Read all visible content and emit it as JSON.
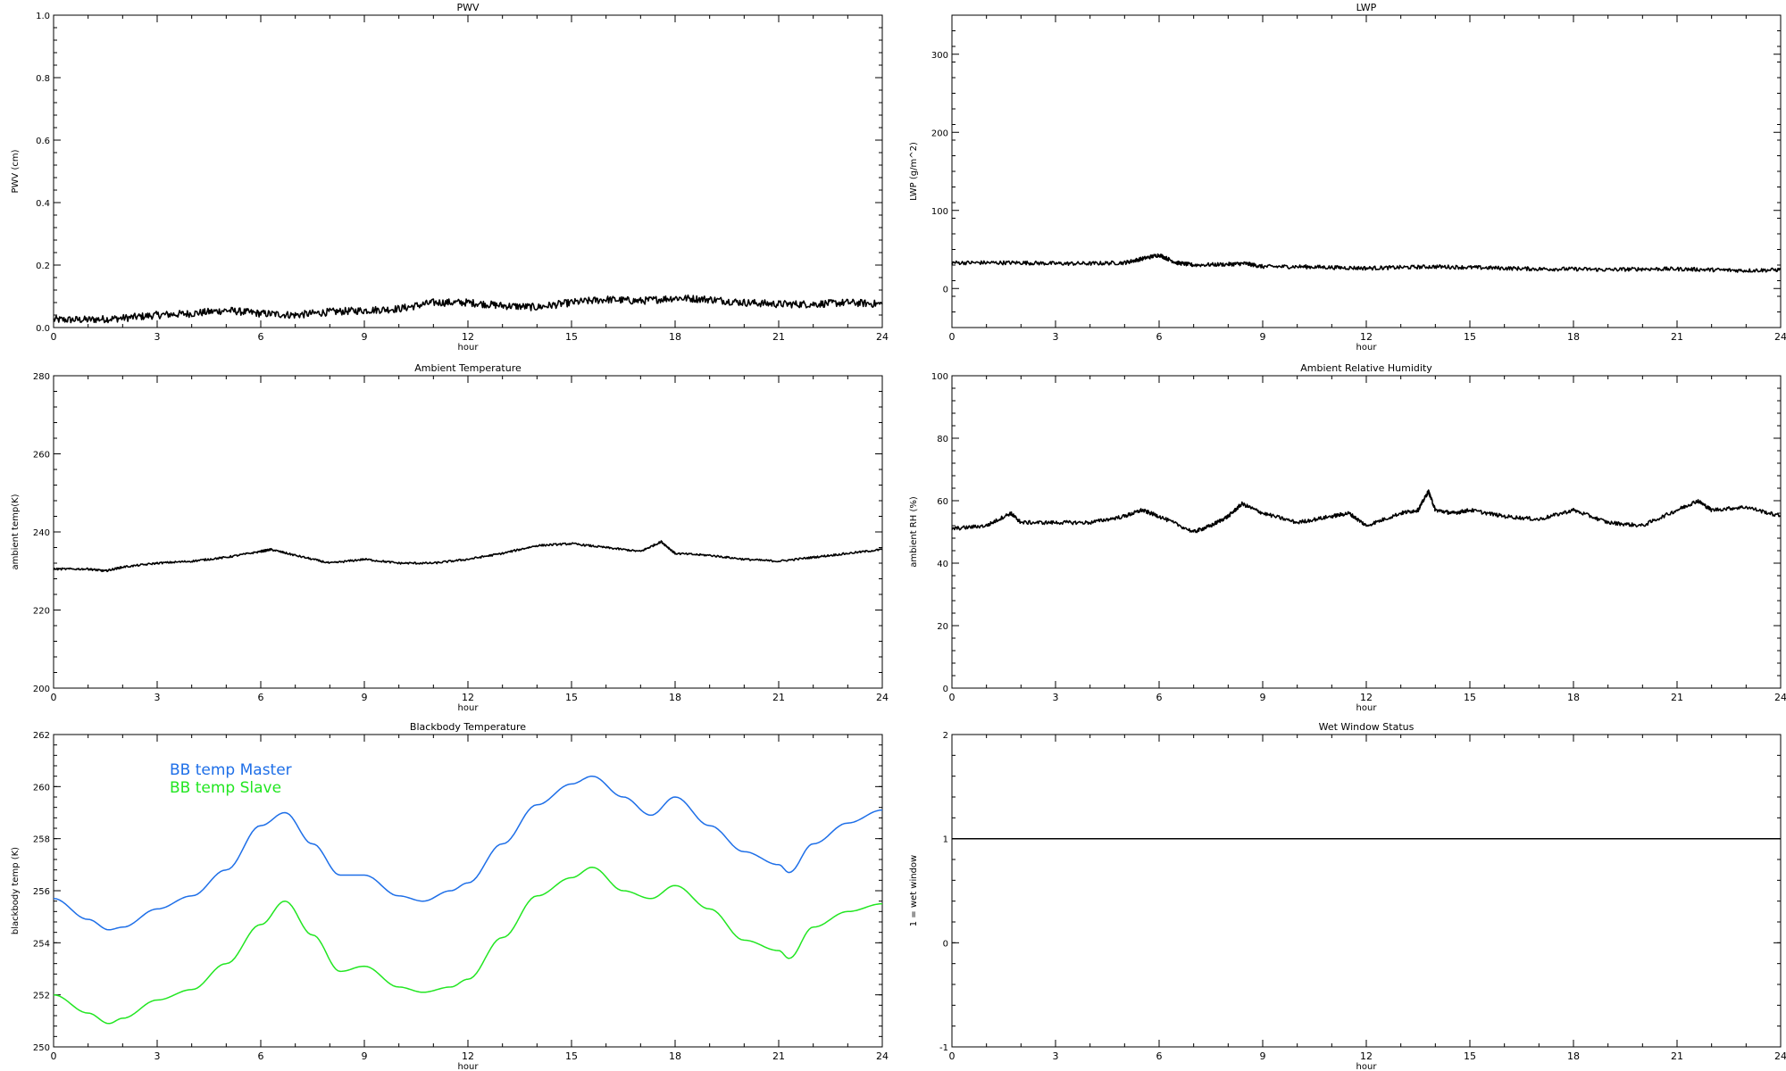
{
  "chart_data": [
    {
      "type": "line",
      "title": "PWV",
      "xlabel": "hour",
      "ylabel": "PWV (cm)",
      "xlim": [
        0,
        24
      ],
      "ylim": [
        0.0,
        1.0
      ],
      "xticks": [
        "0",
        "3",
        "6",
        "9",
        "12",
        "15",
        "18",
        "21",
        "24"
      ],
      "yticks": [
        "0.0",
        "0.2",
        "0.4",
        "0.6",
        "0.8",
        "1.0"
      ],
      "series": [
        {
          "color": "#000000",
          "noise": 0.012,
          "x": [
            0,
            1,
            2,
            3,
            4,
            5,
            6,
            7,
            8,
            9,
            10,
            11,
            12,
            13,
            14,
            15,
            16,
            17,
            18,
            19,
            20,
            21,
            22,
            23,
            24
          ],
          "y": [
            0.025,
            0.025,
            0.03,
            0.04,
            0.045,
            0.055,
            0.045,
            0.04,
            0.05,
            0.055,
            0.06,
            0.08,
            0.08,
            0.07,
            0.065,
            0.08,
            0.09,
            0.085,
            0.095,
            0.09,
            0.08,
            0.075,
            0.075,
            0.08,
            0.075
          ]
        }
      ]
    },
    {
      "type": "line",
      "title": "LWP",
      "xlabel": "hour",
      "ylabel": "LWP (g/m^2)",
      "xlim": [
        0,
        24
      ],
      "ylim": [
        -50,
        350
      ],
      "xticks": [
        "0",
        "3",
        "6",
        "9",
        "12",
        "15",
        "18",
        "21",
        "24"
      ],
      "yticks": [
        "0",
        "100",
        "200",
        "300"
      ],
      "series": [
        {
          "color": "#000000",
          "noise": 2.5,
          "x": [
            0,
            1,
            2,
            3,
            4,
            5,
            5.5,
            6,
            6.5,
            7,
            8,
            8.5,
            9,
            10,
            11,
            12,
            13,
            14,
            15,
            16,
            17,
            18,
            19,
            20,
            21,
            22,
            23,
            24
          ],
          "y": [
            33,
            33,
            33,
            32,
            32,
            33,
            38,
            43,
            33,
            30,
            31,
            32,
            28,
            28,
            27,
            26,
            27,
            28,
            27,
            26,
            25,
            25,
            24,
            25,
            25,
            24,
            23,
            24
          ]
        }
      ]
    },
    {
      "type": "line",
      "title": "Ambient Temperature",
      "xlabel": "hour",
      "ylabel": "ambient temp(K)",
      "xlim": [
        0,
        24
      ],
      "ylim": [
        200,
        280
      ],
      "xticks": [
        "0",
        "3",
        "6",
        "9",
        "12",
        "15",
        "18",
        "21",
        "24"
      ],
      "yticks": [
        "200",
        "220",
        "240",
        "260",
        "280"
      ],
      "series": [
        {
          "color": "#000000",
          "noise": 0.25,
          "x": [
            0,
            1,
            1.5,
            2,
            3,
            4,
            5,
            6,
            6.3,
            7,
            8,
            9,
            10,
            11,
            12,
            13,
            14,
            15,
            16,
            17,
            17.6,
            18,
            19,
            20,
            21,
            22,
            23,
            24
          ],
          "y": [
            230.5,
            230.5,
            230,
            231,
            232,
            232.5,
            233.5,
            235,
            235.5,
            234,
            232,
            233,
            232,
            232,
            233,
            234.5,
            236.5,
            237,
            236,
            235,
            237.5,
            234.5,
            234,
            233,
            232.5,
            233.5,
            234.5,
            235.5
          ]
        }
      ]
    },
    {
      "type": "line",
      "title": "Ambient Relative Humidity",
      "xlabel": "hour",
      "ylabel": "ambient RH (%)",
      "xlim": [
        0,
        24
      ],
      "ylim": [
        0,
        100
      ],
      "xticks": [
        "0",
        "3",
        "6",
        "9",
        "12",
        "15",
        "18",
        "21",
        "24"
      ],
      "yticks": [
        "0",
        "20",
        "40",
        "60",
        "80",
        "100"
      ],
      "series": [
        {
          "color": "#000000",
          "noise": 0.6,
          "x": [
            0,
            1,
            1.7,
            2,
            3,
            4,
            5,
            5.5,
            6,
            7,
            7.5,
            8,
            8.4,
            9,
            10,
            11,
            11.5,
            12,
            13,
            13.5,
            13.8,
            14,
            14.5,
            15,
            16,
            17,
            18,
            19,
            20,
            21,
            21.6,
            22,
            23,
            24
          ],
          "y": [
            51,
            52,
            56,
            53,
            53,
            53,
            55,
            57,
            55,
            50,
            52,
            55,
            59,
            56,
            53,
            55,
            56,
            52,
            56,
            57,
            63,
            57,
            56,
            57,
            55,
            54,
            57,
            53,
            52,
            57,
            60,
            57,
            58,
            55
          ]
        }
      ]
    },
    {
      "type": "line",
      "title": "Blackbody Temperature",
      "xlabel": "hour",
      "ylabel": "blackbody temp (K)",
      "xlim": [
        0,
        24
      ],
      "ylim": [
        250,
        262
      ],
      "xticks": [
        "0",
        "3",
        "6",
        "9",
        "12",
        "15",
        "18",
        "21",
        "24"
      ],
      "yticks": [
        "250",
        "252",
        "254",
        "256",
        "258",
        "260",
        "262"
      ],
      "legend": [
        "BB temp Master",
        "BB temp Slave"
      ],
      "series": [
        {
          "name": "BB temp Master",
          "color": "#1e6fe8",
          "noise": 0,
          "x": [
            0,
            1,
            1.6,
            2,
            3,
            4,
            5,
            6,
            6.7,
            7.5,
            8.3,
            9,
            10,
            10.7,
            11.5,
            12,
            13,
            14,
            15,
            15.6,
            16.5,
            17.3,
            18,
            19,
            20,
            21,
            21.3,
            22,
            23,
            24
          ],
          "y": [
            255.7,
            254.9,
            254.5,
            254.6,
            255.3,
            255.8,
            256.8,
            258.5,
            259.0,
            257.8,
            256.6,
            256.6,
            255.8,
            255.6,
            256.0,
            256.3,
            257.8,
            259.3,
            260.1,
            260.4,
            259.6,
            258.9,
            259.6,
            258.5,
            257.5,
            257.0,
            256.7,
            257.8,
            258.6,
            259.1
          ]
        },
        {
          "name": "BB temp Slave",
          "color": "#22e622",
          "noise": 0,
          "x": [
            0,
            1,
            1.6,
            2,
            3,
            4,
            5,
            6,
            6.7,
            7.5,
            8.3,
            9,
            10,
            10.7,
            11.5,
            12,
            13,
            14,
            15,
            15.6,
            16.5,
            17.3,
            18,
            19,
            20,
            21,
            21.3,
            22,
            23,
            24
          ],
          "y": [
            252.0,
            251.3,
            250.9,
            251.1,
            251.8,
            252.2,
            253.2,
            254.7,
            255.6,
            254.3,
            252.9,
            253.1,
            252.3,
            252.1,
            252.3,
            252.6,
            254.2,
            255.8,
            256.5,
            256.9,
            256.0,
            255.7,
            256.2,
            255.3,
            254.1,
            253.7,
            253.4,
            254.6,
            255.2,
            255.5
          ]
        }
      ]
    },
    {
      "type": "line",
      "title": "Wet Window Status",
      "xlabel": "hour",
      "ylabel": "1 = wet window",
      "xlim": [
        0,
        24
      ],
      "ylim": [
        -1,
        2
      ],
      "xticks": [
        "0",
        "3",
        "6",
        "9",
        "12",
        "15",
        "18",
        "21",
        "24"
      ],
      "yticks": [
        "-1",
        "0",
        "1",
        "2"
      ],
      "series": [
        {
          "color": "#000000",
          "noise": 0,
          "x": [
            0,
            24
          ],
          "y": [
            1,
            1
          ]
        }
      ]
    }
  ]
}
